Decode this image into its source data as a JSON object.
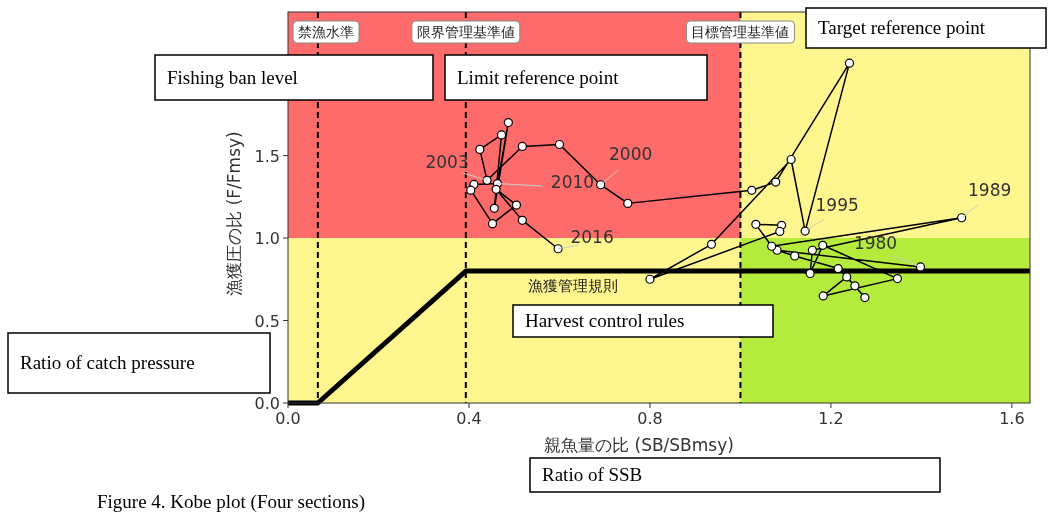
{
  "chart_data": {
    "type": "line",
    "xlabel": "親魚量の比 (SB/SBmsy)",
    "ylabel": "漁獲圧の比 (F/Fmsy)",
    "xlim": [
      0,
      1.64
    ],
    "ylim": [
      0,
      2.37
    ],
    "xticks": [
      {
        "value": 0,
        "label": "0.0"
      },
      {
        "value": 0.4,
        "label": "0.4"
      },
      {
        "value": 0.8,
        "label": "0.8"
      },
      {
        "value": 1.2,
        "label": "1.2"
      },
      {
        "value": 1.6,
        "label": "1.6"
      }
    ],
    "yticks": [
      {
        "value": 0,
        "label": "0.0"
      },
      {
        "value": 0.5,
        "label": "0.5"
      },
      {
        "value": 1.0,
        "label": "1.0"
      },
      {
        "value": 1.5,
        "label": "1.5"
      }
    ],
    "bands": [
      {
        "axis": "y",
        "from": 0,
        "to": 1.0,
        "color": "#fff68f"
      },
      {
        "axis": "y",
        "from": 1.0,
        "to": 2.37,
        "color": "#fe6b6b"
      },
      {
        "axis": "x",
        "from": 1.0,
        "to": 1.64,
        "color": "#fff68f"
      }
    ],
    "ref_lines": [
      {
        "axis": "x",
        "value": 0.066,
        "label": "禁漁水準",
        "color": "#000000",
        "line_style": "dashed"
      },
      {
        "axis": "x",
        "value": 0.393,
        "label": "限界管理基準値",
        "color": "#000000",
        "line_style": "dashed"
      },
      {
        "axis": "x",
        "value": 1.0,
        "label": "目標管理基準値",
        "color": "#000000",
        "line_style": "dashed"
      }
    ],
    "series": [
      {
        "type": "area",
        "color": "#b5eb3c",
        "marker": "none",
        "x": [
          1.0,
          1.64
        ],
        "values": [
          1.0,
          1.0
        ]
      },
      {
        "name": "漁獲管理規則",
        "color": "#000000",
        "marker": "none",
        "x": [
          0,
          0.066,
          0.393,
          1.64
        ],
        "values": [
          0,
          0,
          0.8,
          0.8
        ]
      },
      {
        "color": "#000000",
        "marker": "circle",
        "x": [
          1.398,
          1.081,
          1.12,
          1.216,
          1.253,
          1.275,
          1.235,
          1.183,
          1.347,
          1.182,
          1.154,
          1.159,
          1.489,
          1.069,
          1.034,
          1.091,
          1.087,
          0.8,
          0.936,
          1.112,
          1.143,
          1.241,
          1.078,
          1.025,
          0.751,
          0.691,
          0.6,
          0.518,
          0.44,
          0.424,
          0.472,
          0.456,
          0.487,
          0.463,
          0.411,
          0.404,
          0.452,
          0.505,
          0.46,
          0.518,
          0.597
        ],
        "values": [
          0.825,
          0.926,
          0.891,
          0.815,
          0.71,
          0.639,
          0.764,
          0.649,
          0.754,
          0.956,
          0.785,
          0.926,
          1.123,
          0.95,
          1.083,
          1.077,
          1.04,
          0.75,
          0.962,
          1.476,
          1.042,
          2.06,
          1.339,
          1.289,
          1.21,
          1.323,
          1.567,
          1.555,
          1.35,
          1.537,
          1.625,
          1.18,
          1.7,
          1.33,
          1.325,
          1.29,
          1.087,
          1.2,
          1.295,
          1.107,
          0.935
        ]
      }
    ],
    "annotations": [
      {
        "text": "1980",
        "x": 1.398,
        "y": 0.825
      },
      {
        "text": "1989",
        "x": 1.489,
        "y": 1.123
      },
      {
        "text": "1995",
        "x": 1.143,
        "y": 1.042
      },
      {
        "text": "2000",
        "x": 0.691,
        "y": 1.323
      },
      {
        "text": "2003",
        "x": 0.44,
        "y": 1.35
      },
      {
        "text": "2010",
        "x": 0.463,
        "y": 1.33
      },
      {
        "text": "2016",
        "x": 0.597,
        "y": 0.935
      },
      "Fishing ban level",
      "Limit reference point",
      "Target reference point",
      "Harvest control rules",
      "Ratio of catch pressure",
      "Ratio of SSB",
      "Figure 4. Kobe plot (Four sections)"
    ]
  }
}
